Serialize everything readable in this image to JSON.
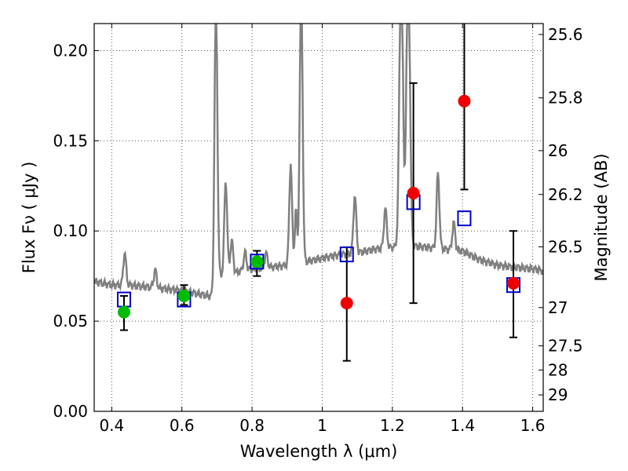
{
  "chart_data": {
    "type": "scatter",
    "xlabel": "Wavelength  λ (μm)",
    "ylabel_left": "Flux  Fν ( μJy )",
    "ylabel_right": "Magnitude (AB)",
    "xlim": [
      0.35,
      1.63
    ],
    "ylim": [
      0.0,
      0.215
    ],
    "grid": true,
    "x_ticks": [
      {
        "value": 0.4,
        "label": "0.4"
      },
      {
        "value": 0.6,
        "label": "0.6"
      },
      {
        "value": 0.8,
        "label": "0.8"
      },
      {
        "value": 1.0,
        "label": "1"
      },
      {
        "value": 1.2,
        "label": "1.2"
      },
      {
        "value": 1.4,
        "label": "1.4"
      },
      {
        "value": 1.6,
        "label": "1.6"
      }
    ],
    "y_ticks": [
      {
        "value": 0.0,
        "label": "0.00"
      },
      {
        "value": 0.05,
        "label": "0.05"
      },
      {
        "value": 0.1,
        "label": "0.10"
      },
      {
        "value": 0.15,
        "label": "0.15"
      },
      {
        "value": 0.2,
        "label": "0.20"
      }
    ],
    "right_ticks": [
      {
        "mag": 25.6,
        "label": "25.6"
      },
      {
        "mag": 25.8,
        "label": "25.8"
      },
      {
        "mag": 26.0,
        "label": "26"
      },
      {
        "mag": 26.2,
        "label": "26.2"
      },
      {
        "mag": 26.5,
        "label": "26.5"
      },
      {
        "mag": 27.0,
        "label": "27"
      },
      {
        "mag": 27.5,
        "label": "27.5"
      },
      {
        "mag": 28.0,
        "label": "28"
      },
      {
        "mag": 29.0,
        "label": "29"
      }
    ],
    "colors": {
      "spectrum": "#808080",
      "model_box": "#0000cc",
      "detection": "#00bb00",
      "nondetection": "#ee0000",
      "errorbar": "#000000",
      "grid": "#555555"
    },
    "spectrum": {
      "continuum": [
        [
          0.35,
          0.072
        ],
        [
          0.4,
          0.07
        ],
        [
          0.45,
          0.07
        ],
        [
          0.5,
          0.069
        ],
        [
          0.55,
          0.068
        ],
        [
          0.6,
          0.067
        ],
        [
          0.65,
          0.065
        ],
        [
          0.68,
          0.064
        ],
        [
          0.69,
          0.064
        ],
        [
          0.7,
          0.075
        ],
        [
          0.72,
          0.076
        ],
        [
          0.75,
          0.077
        ],
        [
          0.8,
          0.079
        ],
        [
          0.85,
          0.08
        ],
        [
          0.9,
          0.081
        ],
        [
          0.95,
          0.083
        ],
        [
          1.0,
          0.085
        ],
        [
          1.05,
          0.087
        ],
        [
          1.1,
          0.088
        ],
        [
          1.15,
          0.09
        ],
        [
          1.2,
          0.091
        ],
        [
          1.25,
          0.092
        ],
        [
          1.3,
          0.091
        ],
        [
          1.35,
          0.09
        ],
        [
          1.4,
          0.089
        ],
        [
          1.45,
          0.084
        ],
        [
          1.5,
          0.081
        ],
        [
          1.55,
          0.08
        ],
        [
          1.6,
          0.079
        ],
        [
          1.63,
          0.078
        ]
      ],
      "lines": [
        {
          "x": 0.437,
          "h": 0.018,
          "w": 0.004
        },
        {
          "x": 0.524,
          "h": 0.01,
          "w": 0.004
        },
        {
          "x": 0.697,
          "h": 0.16,
          "w": 0.004
        },
        {
          "x": 0.725,
          "h": 0.052,
          "w": 0.004
        },
        {
          "x": 0.742,
          "h": 0.018,
          "w": 0.004
        },
        {
          "x": 0.78,
          "h": 0.01,
          "w": 0.004
        },
        {
          "x": 0.84,
          "h": 0.008,
          "w": 0.004
        },
        {
          "x": 0.91,
          "h": 0.056,
          "w": 0.004
        },
        {
          "x": 0.925,
          "h": 0.03,
          "w": 0.003
        },
        {
          "x": 0.94,
          "h": 0.16,
          "w": 0.004
        },
        {
          "x": 1.093,
          "h": 0.032,
          "w": 0.004
        },
        {
          "x": 1.18,
          "h": 0.022,
          "w": 0.004
        },
        {
          "x": 1.225,
          "h": 0.16,
          "w": 0.005
        },
        {
          "x": 1.245,
          "h": 0.16,
          "w": 0.005
        },
        {
          "x": 1.33,
          "h": 0.042,
          "w": 0.004
        },
        {
          "x": 1.375,
          "h": 0.015,
          "w": 0.004
        }
      ]
    },
    "model_points": [
      {
        "x": 0.435,
        "y": 0.062
      },
      {
        "x": 0.606,
        "y": 0.062
      },
      {
        "x": 0.814,
        "y": 0.083
      },
      {
        "x": 1.07,
        "y": 0.087
      },
      {
        "x": 1.26,
        "y": 0.116
      },
      {
        "x": 1.405,
        "y": 0.107
      },
      {
        "x": 1.545,
        "y": 0.07
      }
    ],
    "detections": [
      {
        "x": 0.435,
        "y": 0.055,
        "err_low": 0.045,
        "err_high": 0.064
      },
      {
        "x": 0.606,
        "y": 0.064,
        "err_low": 0.059,
        "err_high": 0.07
      },
      {
        "x": 0.814,
        "y": 0.083,
        "err_low": 0.075,
        "err_high": 0.089
      }
    ],
    "nondetections": [
      {
        "x": 1.07,
        "y": 0.06,
        "err_low": 0.028,
        "err_high": 0.091
      },
      {
        "x": 1.26,
        "y": 0.121,
        "err_low": 0.06,
        "err_high": 0.182
      },
      {
        "x": 1.405,
        "y": 0.172,
        "err_low": 0.123,
        "err_high": 0.215
      },
      {
        "x": 1.545,
        "y": 0.071,
        "err_low": 0.041,
        "err_high": 0.1
      }
    ]
  }
}
